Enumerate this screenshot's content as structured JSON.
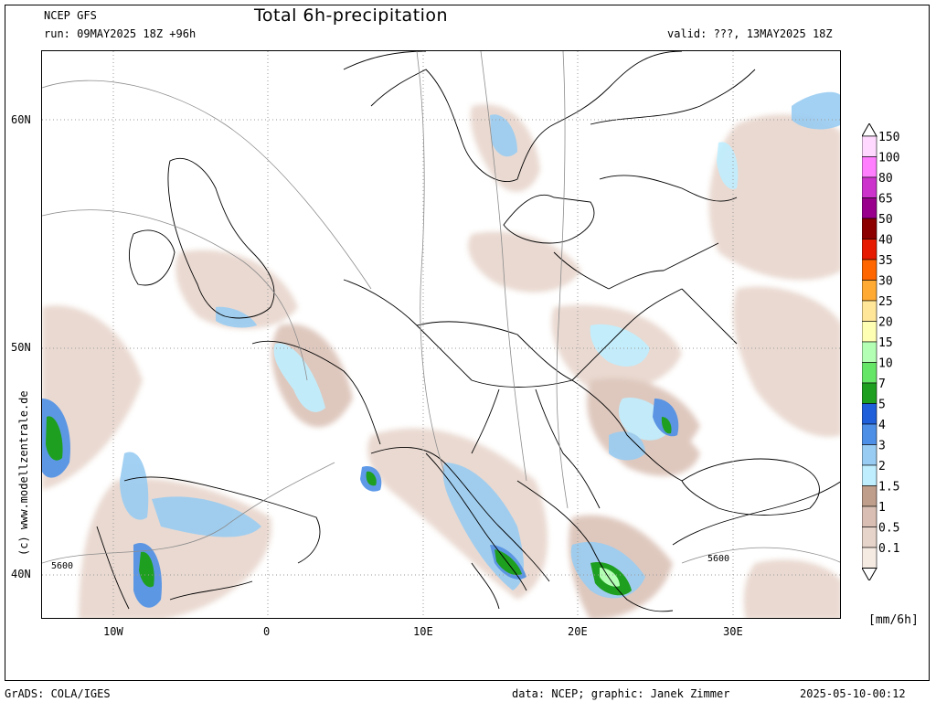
{
  "header": {
    "model": "NCEP GFS",
    "run": "run: 09MAY2025 18Z +96h",
    "title": "Total 6h-precipitation",
    "valid": "valid: ???, 13MAY2025 18Z"
  },
  "axes": {
    "lat_labels": [
      "60N",
      "50N",
      "40N"
    ],
    "lon_labels": [
      "10W",
      "0",
      "10E",
      "20E",
      "30E"
    ]
  },
  "contours": {
    "labels": [
      "5600",
      "5600"
    ]
  },
  "legend": {
    "unit": "[mm/6h]",
    "levels": [
      {
        "label": "150",
        "color": "#ffd9ff"
      },
      {
        "label": "100",
        "color": "#ff7fff"
      },
      {
        "label": "80",
        "color": "#cc33cc"
      },
      {
        "label": "65",
        "color": "#99008c"
      },
      {
        "label": "50",
        "color": "#8c0000"
      },
      {
        "label": "40",
        "color": "#e61a00"
      },
      {
        "label": "35",
        "color": "#ff6600"
      },
      {
        "label": "30",
        "color": "#ffaa33"
      },
      {
        "label": "25",
        "color": "#ffe699"
      },
      {
        "label": "20",
        "color": "#ffffb3"
      },
      {
        "label": "15",
        "color": "#b3ffb3"
      },
      {
        "label": "10",
        "color": "#66e666"
      },
      {
        "label": "7",
        "color": "#1f9f1f"
      },
      {
        "label": "5",
        "color": "#1f5fd9"
      },
      {
        "label": "4",
        "color": "#4d8fe6"
      },
      {
        "label": "3",
        "color": "#99ccf2"
      },
      {
        "label": "2",
        "color": "#bfeeff"
      },
      {
        "label": "1.5",
        "color": "#bf9f8c"
      },
      {
        "label": "1",
        "color": "#d9bfb3"
      },
      {
        "label": "0.5",
        "color": "#e6d3c9"
      },
      {
        "label": "0.1",
        "color": "#f5ebe3"
      }
    ]
  },
  "watermark": "(c) www.modellzentrale.de",
  "footer": {
    "left": "GrADS: COLA/IGES",
    "credit": "data: NCEP; graphic: Janek Zimmer",
    "timestamp": "2025-05-10-00:12"
  }
}
